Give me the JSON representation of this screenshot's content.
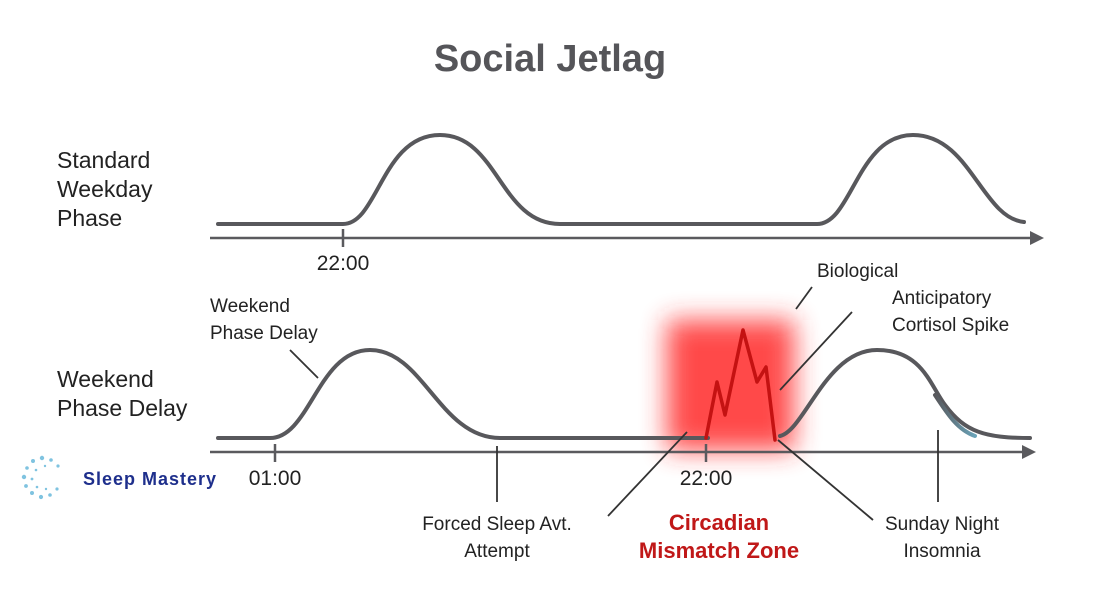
{
  "title": "Social Jetlag",
  "rows": {
    "top_label": "Standard\nWeekday\nPhase",
    "bottom_label": "Weekend\nPhase Delay"
  },
  "ticks": {
    "top_2200": "22:00",
    "bottom_0100": "01:00",
    "bottom_2200": "22:00"
  },
  "annotations": {
    "weekend_delay_line1": "Weekend",
    "weekend_delay_line2": "Phase Delay",
    "biological": "Biological",
    "anticipatory": "Anticipatory",
    "cortisol": "Cortisol Spike",
    "forced_line1": "Forced Sleep Avt.",
    "forced_line2": "Attempt",
    "zone_line1": "Circadian",
    "zone_line2": "Mismatch Zone",
    "insomnia_line1": "Sunday Night",
    "insomnia_line2": "Insomnia"
  },
  "brand": {
    "name": "Sleep Mastery"
  },
  "colors": {
    "curve": "#58585c",
    "axis": "#5a5a5e",
    "zone_fill": "#ff2a2a",
    "zone_line": "#c41212",
    "zone_text": "#c01818",
    "title": "#555559",
    "brand": "#1e2f8c",
    "brand_dots": "#7fc3e0"
  }
}
